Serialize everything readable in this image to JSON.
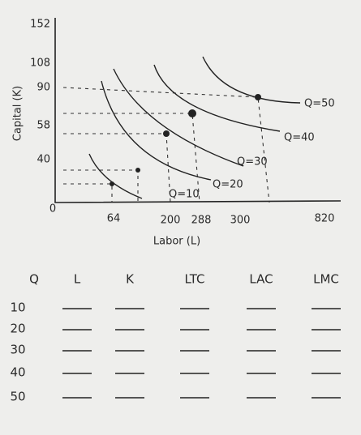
{
  "diagram": {
    "y_axis": {
      "title": "Capital (K)",
      "ticks": [
        "152",
        "108",
        "90",
        "58",
        "40"
      ]
    },
    "x_axis": {
      "title": "Labor (L)",
      "origin": "0",
      "ticks": [
        "64",
        "200",
        "288",
        "300",
        "820"
      ]
    },
    "isoquants": [
      "Q=10",
      "Q=20",
      "Q=30",
      "Q=40",
      "Q=50"
    ]
  },
  "table": {
    "headers": [
      "Q",
      "L",
      "K",
      "LTC",
      "LAC",
      "LMC"
    ],
    "rows": [
      "10",
      "20",
      "30",
      "40",
      "50"
    ]
  }
}
